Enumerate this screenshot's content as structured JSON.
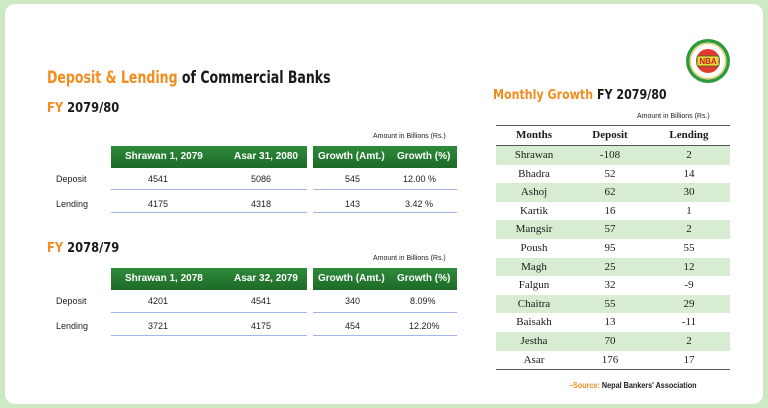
{
  "title": {
    "highlight": "Deposit & Lending",
    "rest": " of Commercial Banks"
  },
  "logo": {
    "text": "NBA"
  },
  "colors": {
    "accent": "#f28c1e",
    "header_green": "#2e8b3a",
    "row_green": "#d7ecd0",
    "page_border": "#cfe9c6"
  },
  "tables": [
    {
      "fy_prefix": "FY",
      "fy_label": "2079/80",
      "unit_note": "Amount in Billions (Rs.)",
      "headers": [
        "Shrawan 1, 2079",
        "Asar 31, 2080",
        "Growth (Amt.)",
        "Growth (%)"
      ],
      "rows": [
        {
          "label": "Deposit",
          "values": [
            "4541",
            "5086",
            "545",
            "12.00 %"
          ]
        },
        {
          "label": "Lending",
          "values": [
            "4175",
            "4318",
            "143",
            "3.42 %"
          ]
        }
      ]
    },
    {
      "fy_prefix": "FY",
      "fy_label": "2078/79",
      "unit_note": "Amount in Billions (Rs.)",
      "headers": [
        "Shrawan 1, 2078",
        "Asar 32, 2079",
        "Growth (Amt.)",
        "Growth (%)"
      ],
      "rows": [
        {
          "label": "Deposit",
          "values": [
            "4201",
            "4541",
            "340",
            "8.09%"
          ]
        },
        {
          "label": "Lending",
          "values": [
            "3721",
            "4175",
            "454",
            "12.20%"
          ]
        }
      ]
    }
  ],
  "monthly": {
    "title_highlight": "Monthly Growth",
    "title_rest": " FY 2079/80",
    "unit_note": "Amount in Billions (Rs.)",
    "headers": [
      "Months",
      "Deposit",
      "Lending"
    ],
    "rows": [
      [
        "Shrawan",
        "-108",
        "2"
      ],
      [
        "Bhadra",
        "52",
        "14"
      ],
      [
        "Ashoj",
        "62",
        "30"
      ],
      [
        "Kartik",
        "16",
        "1"
      ],
      [
        "Mangsir",
        "57",
        "2"
      ],
      [
        "Poush",
        "95",
        "55"
      ],
      [
        "Magh",
        "25",
        "12"
      ],
      [
        "Falgun",
        "32",
        "-9"
      ],
      [
        "Chaitra",
        "55",
        "29"
      ],
      [
        "Baisakh",
        "13",
        "-11"
      ],
      [
        "Jestha",
        "70",
        "2"
      ],
      [
        "Asar",
        "176",
        "17"
      ]
    ]
  },
  "source": {
    "prefix": "–Source:",
    "text": " Nepal Bankers' Association"
  }
}
